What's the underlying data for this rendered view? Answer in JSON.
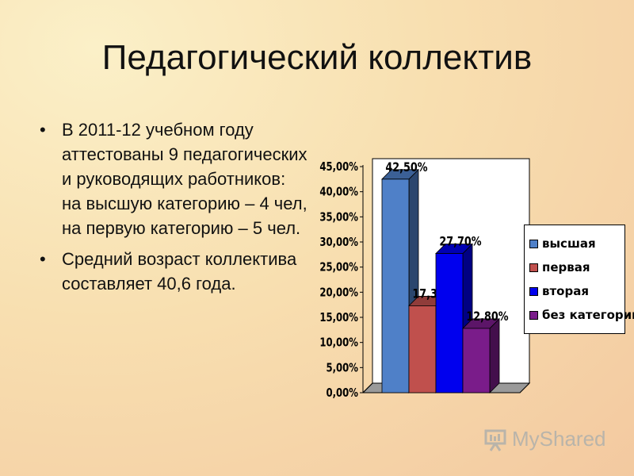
{
  "title": "Педагогический коллектив",
  "bullets": [
    {
      "marker": "•",
      "text": "В 2011-12 учебном году аттестованы 9 педагогических и руководящих работников:  на высшую категорию – 4 чел,  на первую категорию – 5 чел."
    },
    {
      "marker": "•",
      "text": "Средний возраст коллектива составляет 40,6 года."
    }
  ],
  "chart_data": {
    "type": "bar",
    "categories": [
      "высшая",
      "первая",
      "вторая",
      "без категории"
    ],
    "values": [
      42.5,
      17.3,
      27.7,
      12.8
    ],
    "data_labels": [
      "42,50%",
      "17,30%",
      "27,70%",
      "12,80%"
    ],
    "colors": [
      "#4f80c8",
      "#c0504d",
      "#0000ee",
      "#7a1c8a"
    ],
    "ylim": [
      0,
      45
    ],
    "yticks": [
      "0,00%",
      "5,00%",
      "10,00%",
      "15,00%",
      "20,00%",
      "25,00%",
      "30,00%",
      "35,00%",
      "40,00%",
      "45,00%"
    ],
    "legend": [
      "высшая",
      "первая",
      "вторая",
      "без категории"
    ],
    "legend_position": "right",
    "grid": false,
    "style": "3d-bars"
  },
  "watermark": {
    "text": "MyShared",
    "icon": "presentation-board-icon"
  }
}
